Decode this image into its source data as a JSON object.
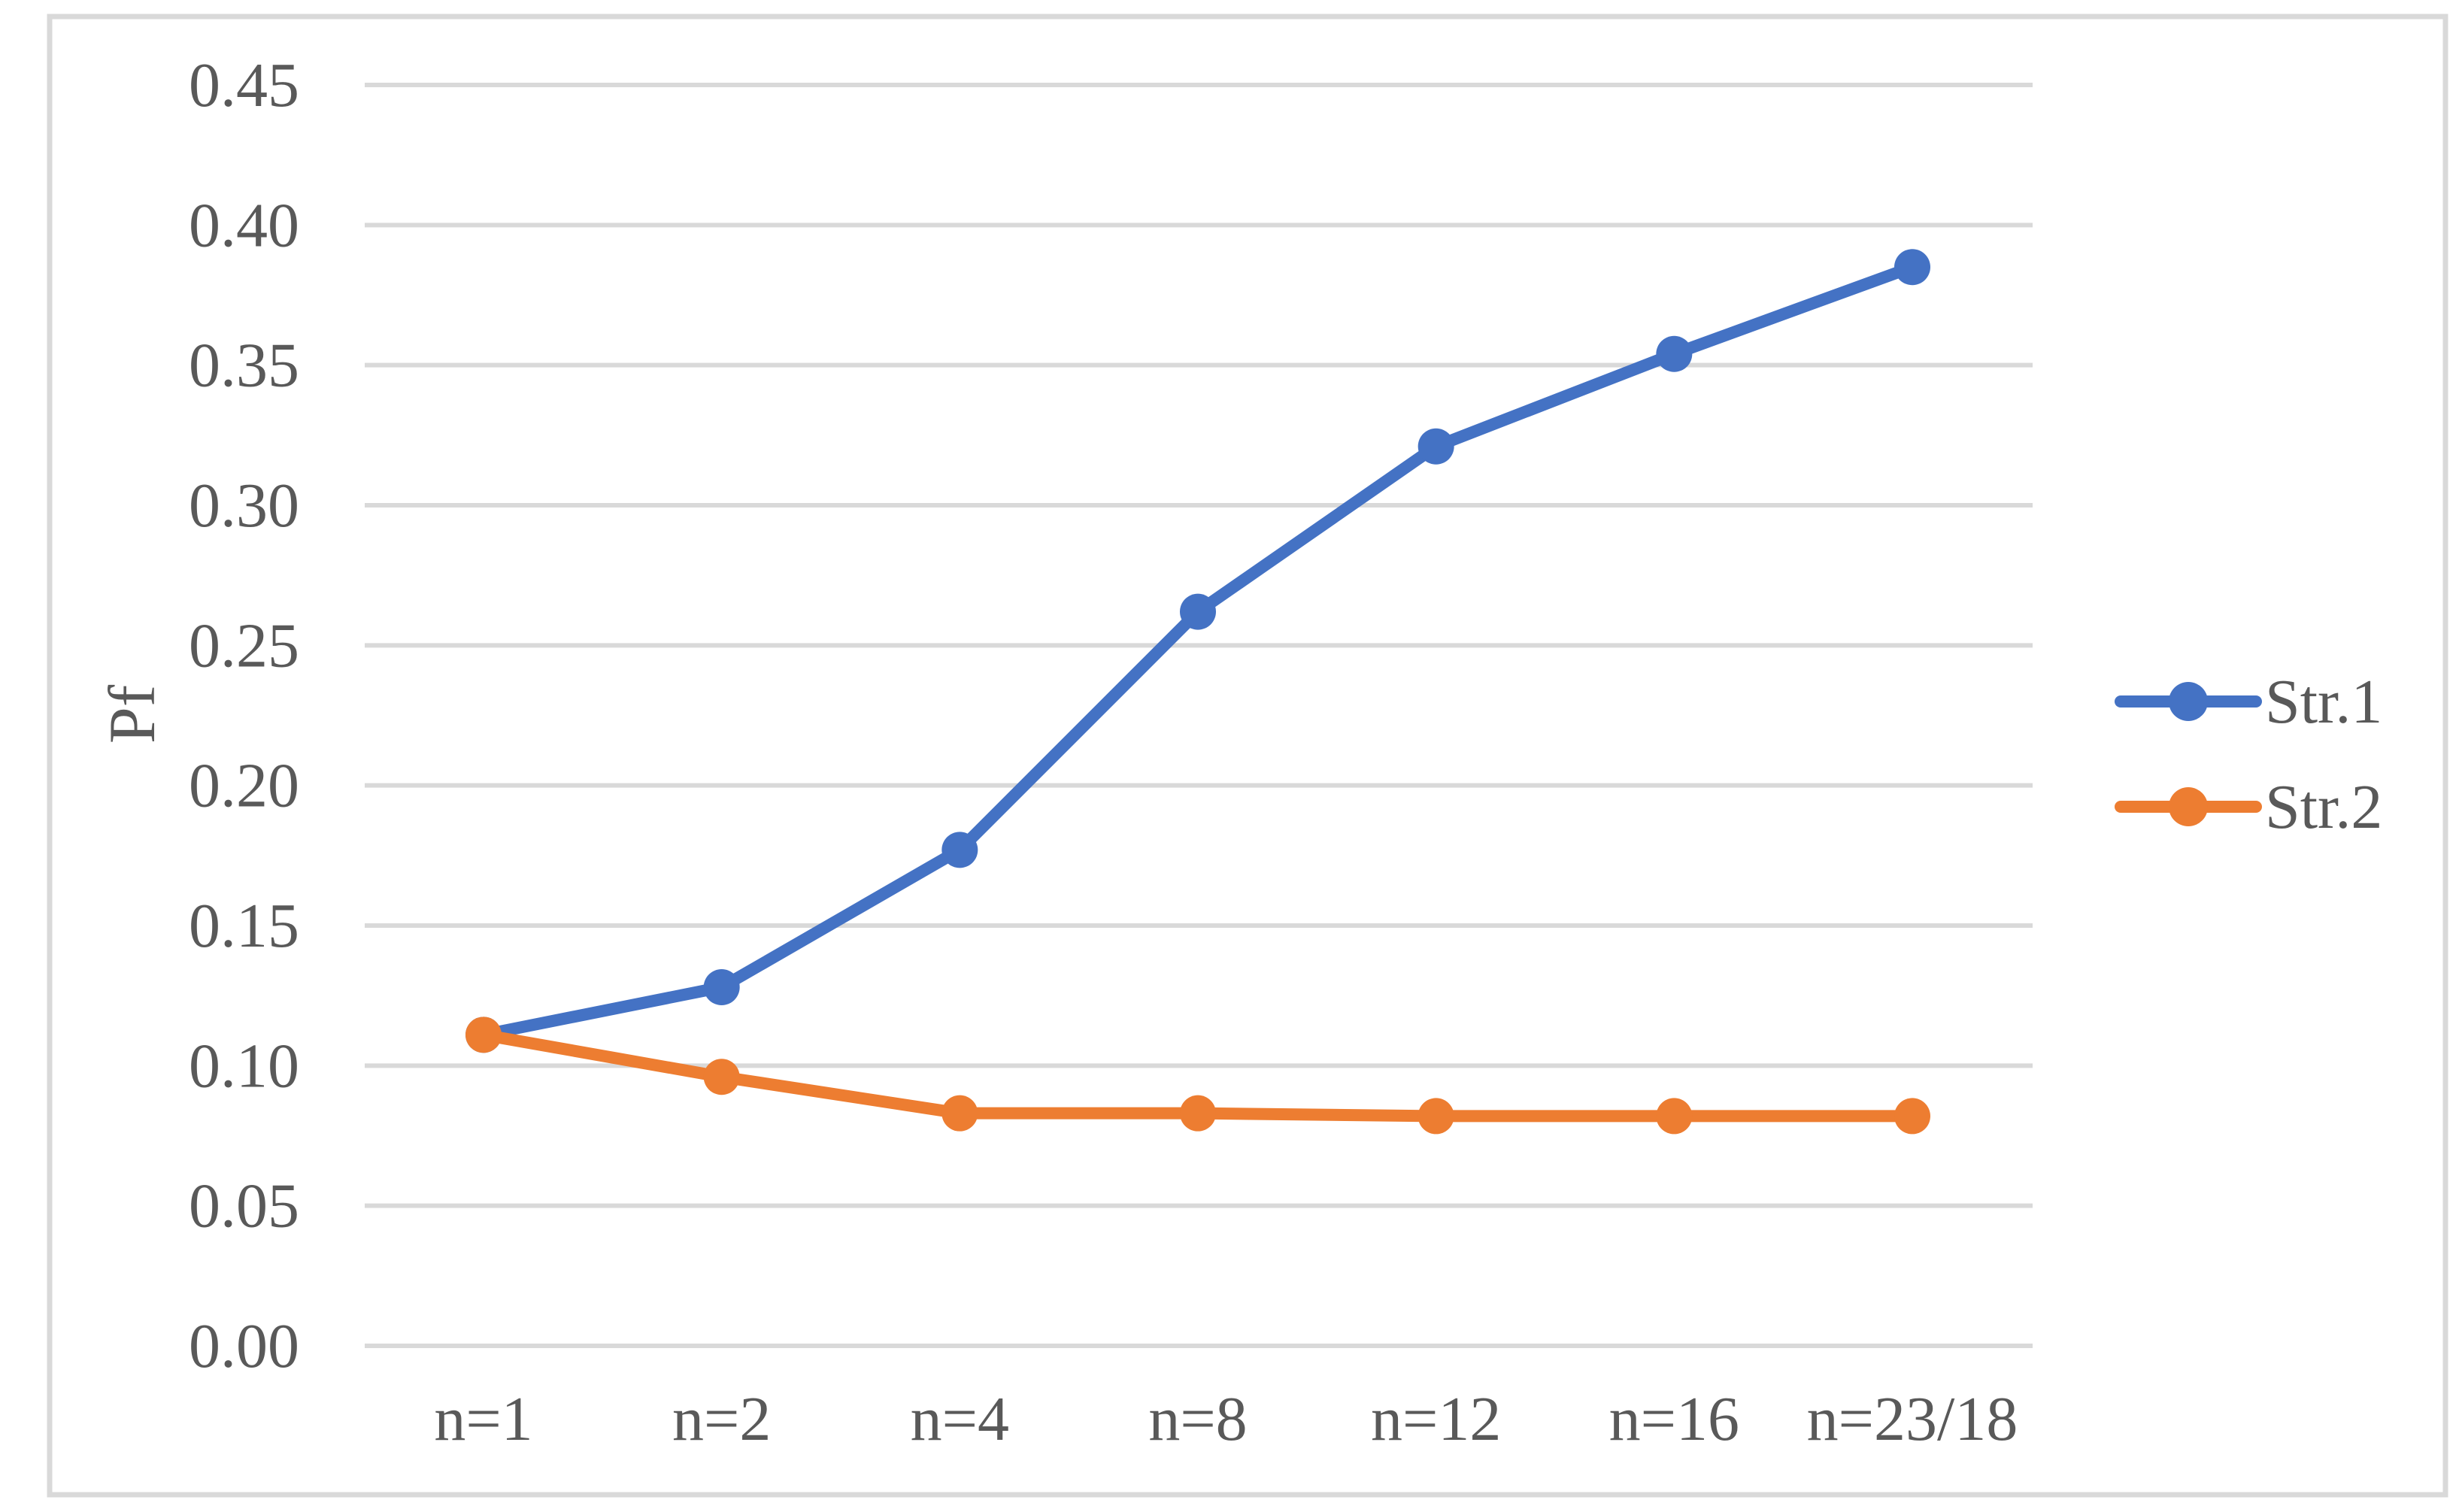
{
  "figure": {
    "ylabel": "Pf"
  },
  "chart_data": {
    "type": "line",
    "title": "",
    "xlabel": "",
    "ylabel": "Pf",
    "categories": [
      "n=1",
      "n=2",
      "n=4",
      "n=8",
      "n=12",
      "n=16",
      "n=23/18"
    ],
    "series": [
      {
        "name": "Str.1",
        "color": "#4472C4",
        "values": [
          0.111,
          0.128,
          0.177,
          0.262,
          0.321,
          0.354,
          0.385
        ]
      },
      {
        "name": "Str.2",
        "color": "#ED7D31",
        "values": [
          0.111,
          0.096,
          0.083,
          0.083,
          0.082,
          0.082,
          0.082
        ]
      }
    ],
    "ylim": [
      0,
      0.45
    ],
    "ytick_step": 0.05,
    "ytick_decimals": 2,
    "ytick_labels": [
      "0.00",
      "0.05",
      "0.10",
      "0.15",
      "0.20",
      "0.25",
      "0.30",
      "0.35",
      "0.40",
      "0.45"
    ],
    "grid": true,
    "legend_position": "right",
    "legend_labels": [
      "Str.1",
      "Str.2"
    ],
    "text_color": "#595959",
    "grid_color": "#D9D9D9",
    "border_color": "#D9D9D9",
    "background_color": "#FFFFFF"
  }
}
